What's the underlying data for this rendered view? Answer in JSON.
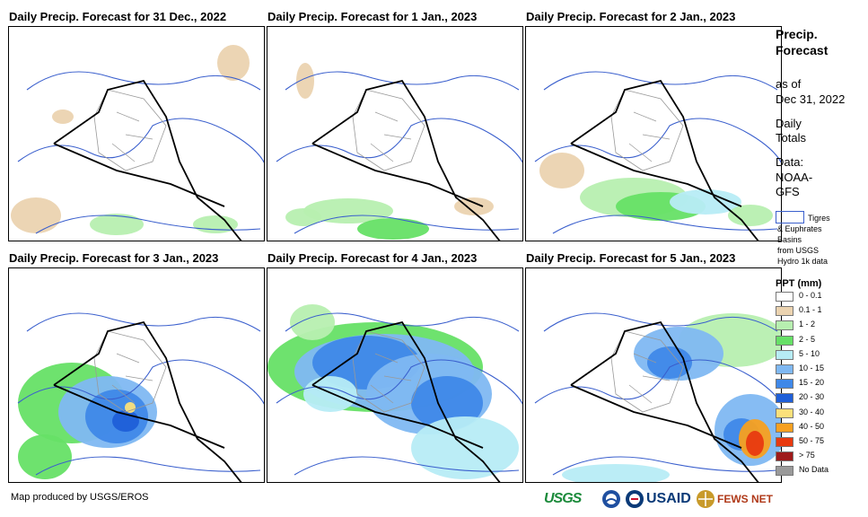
{
  "panels": [
    {
      "title": "Daily Precip. Forecast for 31 Dec., 2022"
    },
    {
      "title": "Daily Precip. Forecast for 1 Jan., 2023"
    },
    {
      "title": "Daily Precip. Forecast for 2 Jan., 2023"
    },
    {
      "title": "Daily Precip. Forecast for 3 Jan., 2023"
    },
    {
      "title": "Daily Precip. Forecast for 4 Jan., 2023"
    },
    {
      "title": "Daily Precip. Forecast for 5 Jan., 2023"
    }
  ],
  "sidebar": {
    "title_line1": "Precip.",
    "title_line2": "Forecast",
    "asof_line1": "as of",
    "asof_line2": "Dec 31, 2022",
    "totals_line1": "Daily",
    "totals_line2": "Totals",
    "data_line1": "Data:",
    "data_line2": "NOAA-",
    "data_line3": "GFS",
    "basin_line1": "Tigres",
    "basin_line2": "& Euphrates",
    "basin_line3": "Basins",
    "basin_line4": "from USGS",
    "basin_line5": "Hydro 1k data",
    "legend_title": "PPT (mm)"
  },
  "legend": [
    {
      "label": "0 - 0.1",
      "color": "#ffffff"
    },
    {
      "label": "0.1 - 1",
      "color": "#ebd3b0"
    },
    {
      "label": "1 - 2",
      "color": "#b7efb0"
    },
    {
      "label": "2 - 5",
      "color": "#66e066"
    },
    {
      "label": "5 - 10",
      "color": "#b7ecf5"
    },
    {
      "label": "10 - 15",
      "color": "#7fb8f2"
    },
    {
      "label": "15 - 20",
      "color": "#3f88e8"
    },
    {
      "label": "20 - 30",
      "color": "#1f5fd8"
    },
    {
      "label": "30 - 40",
      "color": "#fbe07a"
    },
    {
      "label": "40 - 50",
      "color": "#f7a020"
    },
    {
      "label": "50 - 75",
      "color": "#e83a10"
    },
    {
      "label": "> 75",
      "color": "#9e1a1a"
    },
    {
      "label": "No Data",
      "color": "#9a9a9a"
    }
  ],
  "footer": {
    "credit": "Map produced by USGS/EROS",
    "logo_usgs": "USGS",
    "logo_usaid": "USAID",
    "logo_fews": "FEWS NET"
  }
}
